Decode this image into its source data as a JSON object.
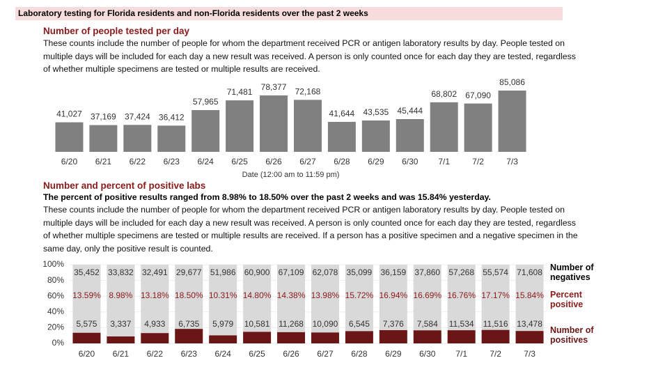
{
  "header": "Laboratory testing for Florida residents and non-Florida residents over the past 2 weeks",
  "section1": {
    "title": "Number of people tested per day",
    "text": "These counts include the number of people for whom the department received PCR or antigen laboratory results by day. People tested on multiple days will be included for each day a new result was received. A person is only counted once for each day they are tested, regardless of whether multiple specimens are tested or multiple results are received."
  },
  "section2": {
    "title": "Number and percent of positive labs",
    "highlight": "The percent of positive results ranged from 8.98% to 18.50% over the past 2 weeks and was 15.84% yesterday.",
    "text": "These counts include the number of people for whom the department received PCR or antigen laboratory results by day. People tested on multiple days will be included for each day a new result was received. A person is only counted once for each day they are tested, regardless of whether multiple specimens are tested or multiple results are received. If a person has a positive specimen and a negative specimen in the same day, only the positive result is counted."
  },
  "chart_data": [
    {
      "type": "bar",
      "xlabel": "Date (12:00 am to 11:59 pm)",
      "categories": [
        "6/20",
        "6/21",
        "6/22",
        "6/23",
        "6/24",
        "6/25",
        "6/26",
        "6/27",
        "6/28",
        "6/29",
        "6/30",
        "7/1",
        "7/2",
        "7/3"
      ],
      "values": [
        41027,
        37169,
        37424,
        36412,
        57965,
        71481,
        78377,
        72168,
        41644,
        43535,
        45444,
        68802,
        67090,
        85086
      ],
      "value_labels": [
        "41,027",
        "37,169",
        "37,424",
        "36,412",
        "57,965",
        "71,481",
        "78,377",
        "72,168",
        "41,644",
        "43,535",
        "45,444",
        "68,802",
        "67,090",
        "85,086"
      ],
      "color": "#808080"
    },
    {
      "type": "stacked_percent_bar",
      "categories": [
        "6/20",
        "6/21",
        "6/22",
        "6/23",
        "6/24",
        "6/25",
        "6/26",
        "6/27",
        "6/28",
        "6/29",
        "6/30",
        "7/1",
        "7/2",
        "7/3"
      ],
      "ylim": [
        0,
        100
      ],
      "yticks": [
        {
          "value": 0,
          "label": "0%"
        },
        {
          "value": 20,
          "label": "20%"
        },
        {
          "value": 40,
          "label": "40%"
        },
        {
          "value": 60,
          "label": "60%"
        },
        {
          "value": 80,
          "label": "80%"
        },
        {
          "value": 100,
          "label": "100%"
        }
      ],
      "grid": true,
      "series": [
        {
          "name": "Number of positives",
          "color": "#6b1616",
          "values": [
            5575,
            3337,
            4933,
            6735,
            5979,
            10581,
            11268,
            10090,
            6545,
            7376,
            7584,
            11534,
            11516,
            13478
          ],
          "value_labels": [
            "5,575",
            "3,337",
            "4,933",
            "6,735",
            "5,979",
            "10,581",
            "11,268",
            "10,090",
            "6,545",
            "7,376",
            "7,584",
            "11,534",
            "11,516",
            "13,478"
          ]
        },
        {
          "name": "Number of negatives",
          "color": "#d9d9d9",
          "values": [
            35452,
            33832,
            32491,
            29677,
            51986,
            60900,
            67109,
            62078,
            35099,
            36159,
            37860,
            57268,
            55574,
            71608
          ],
          "value_labels": [
            "35,452",
            "33,832",
            "32,491",
            "29,677",
            "51,986",
            "60,900",
            "67,109",
            "62,078",
            "35,099",
            "36,159",
            "37,860",
            "57,268",
            "55,574",
            "71,608"
          ]
        },
        {
          "name": "Percent positive",
          "color": "#8b1a1a",
          "values": [
            13.59,
            8.98,
            13.18,
            18.5,
            10.31,
            14.8,
            14.38,
            13.98,
            15.72,
            16.94,
            16.69,
            16.76,
            17.17,
            15.84
          ],
          "value_labels": [
            "13.59%",
            "8.98%",
            "13.18%",
            "18.50%",
            "10.31%",
            "14.80%",
            "14.38%",
            "13.98%",
            "15.72%",
            "16.94%",
            "16.69%",
            "16.76%",
            "17.17%",
            "15.84%"
          ]
        }
      ]
    }
  ]
}
